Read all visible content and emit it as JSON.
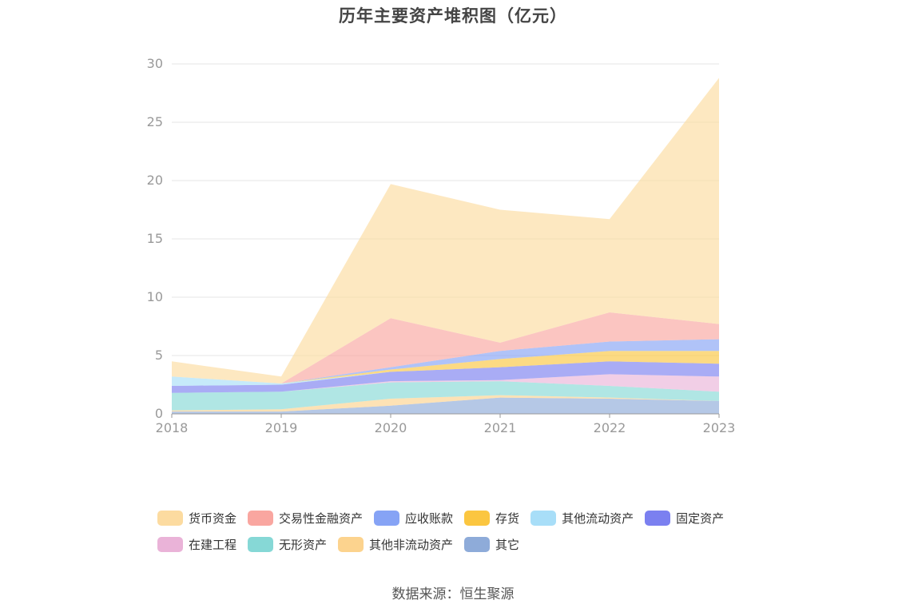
{
  "chart_data": {
    "type": "area",
    "stacked": true,
    "title": "历年主要资产堆积图（亿元）",
    "xlabel": "",
    "ylabel": "",
    "ylim": [
      0,
      30
    ],
    "yticks": [
      0,
      5,
      10,
      15,
      20,
      25,
      30
    ],
    "grid": true,
    "categories": [
      "2018",
      "2019",
      "2020",
      "2021",
      "2022",
      "2023"
    ],
    "series": [
      {
        "name": "其它",
        "color": "#8eabd9",
        "values": [
          0.2,
          0.2,
          0.7,
          1.4,
          1.3,
          1.1
        ]
      },
      {
        "name": "其他非流动资产",
        "color": "#fcd38e",
        "values": [
          0.1,
          0.2,
          0.6,
          0.2,
          0.1,
          0.0
        ]
      },
      {
        "name": "无形资产",
        "color": "#86d8d6",
        "values": [
          1.5,
          1.5,
          1.4,
          1.2,
          1.0,
          0.8
        ]
      },
      {
        "name": "在建工程",
        "color": "#eab3d8",
        "values": [
          0.0,
          0.0,
          0.1,
          0.1,
          1.0,
          1.3
        ]
      },
      {
        "name": "固定资产",
        "color": "#7b80f0",
        "values": [
          0.6,
          0.6,
          0.8,
          1.1,
          1.1,
          1.1
        ]
      },
      {
        "name": "其他流动资产",
        "color": "#a8def8",
        "values": [
          0.8,
          0.1,
          0.0,
          0.0,
          0.0,
          0.0
        ]
      },
      {
        "name": "存货",
        "color": "#fbc640",
        "values": [
          0.0,
          0.0,
          0.2,
          0.7,
          0.9,
          1.1
        ]
      },
      {
        "name": "应收账款",
        "color": "#86a3f5",
        "values": [
          0.0,
          0.0,
          0.2,
          0.7,
          0.8,
          1.0
        ]
      },
      {
        "name": "交易性金融资产",
        "color": "#f9a6a0",
        "values": [
          0.0,
          0.0,
          4.2,
          0.7,
          2.5,
          1.3
        ]
      },
      {
        "name": "货币资金",
        "color": "#fcdba0",
        "values": [
          1.3,
          0.6,
          11.5,
          11.4,
          8.0,
          21.1
        ]
      }
    ],
    "legend_position": "bottom"
  },
  "legend": {
    "rows": [
      [
        {
          "label": "货币资金",
          "color": "#fcdba0"
        },
        {
          "label": "交易性金融资产",
          "color": "#f9a6a0"
        },
        {
          "label": "应收账款",
          "color": "#86a3f5"
        },
        {
          "label": "存货",
          "color": "#fbc640"
        },
        {
          "label": "其他流动资产",
          "color": "#a8def8"
        },
        {
          "label": "固定资产",
          "color": "#7b80f0"
        }
      ],
      [
        {
          "label": "在建工程",
          "color": "#eab3d8"
        },
        {
          "label": "无形资产",
          "color": "#86d8d6"
        },
        {
          "label": "其他非流动资产",
          "color": "#fcd38e"
        },
        {
          "label": "其它",
          "color": "#8eabd9"
        }
      ]
    ]
  },
  "source": "数据来源：恒生聚源"
}
